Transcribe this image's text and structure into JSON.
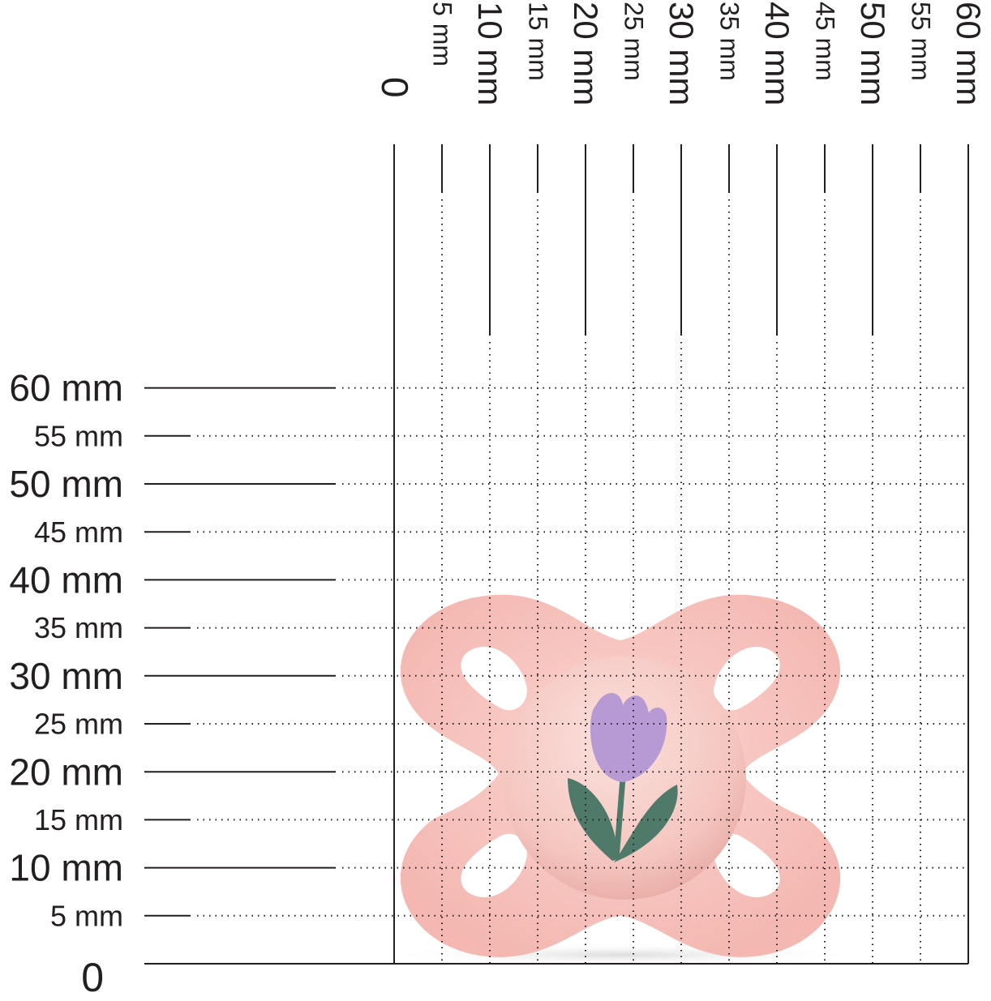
{
  "ruler": {
    "x_labels": [
      "0",
      "5 mm",
      "10 mm",
      "15 mm",
      "20 mm",
      "25 mm",
      "30 mm",
      "35 mm",
      "40 mm",
      "45 mm",
      "50 mm",
      "55 mm",
      "60 mm"
    ],
    "y_labels": [
      "0",
      "5 mm",
      "10 mm",
      "15 mm",
      "20 mm",
      "25 mm",
      "30 mm",
      "35 mm",
      "40 mm",
      "45 mm",
      "50 mm",
      "55 mm",
      "60 mm"
    ],
    "line_color": "#231f20",
    "grid_style": "dotted"
  },
  "product": {
    "name_icon": "pacifier-with-tulip-icon",
    "shield_color": "#f7c3bf",
    "flower_color": "#b79ad3",
    "leaf_color": "#4f7a6a"
  }
}
